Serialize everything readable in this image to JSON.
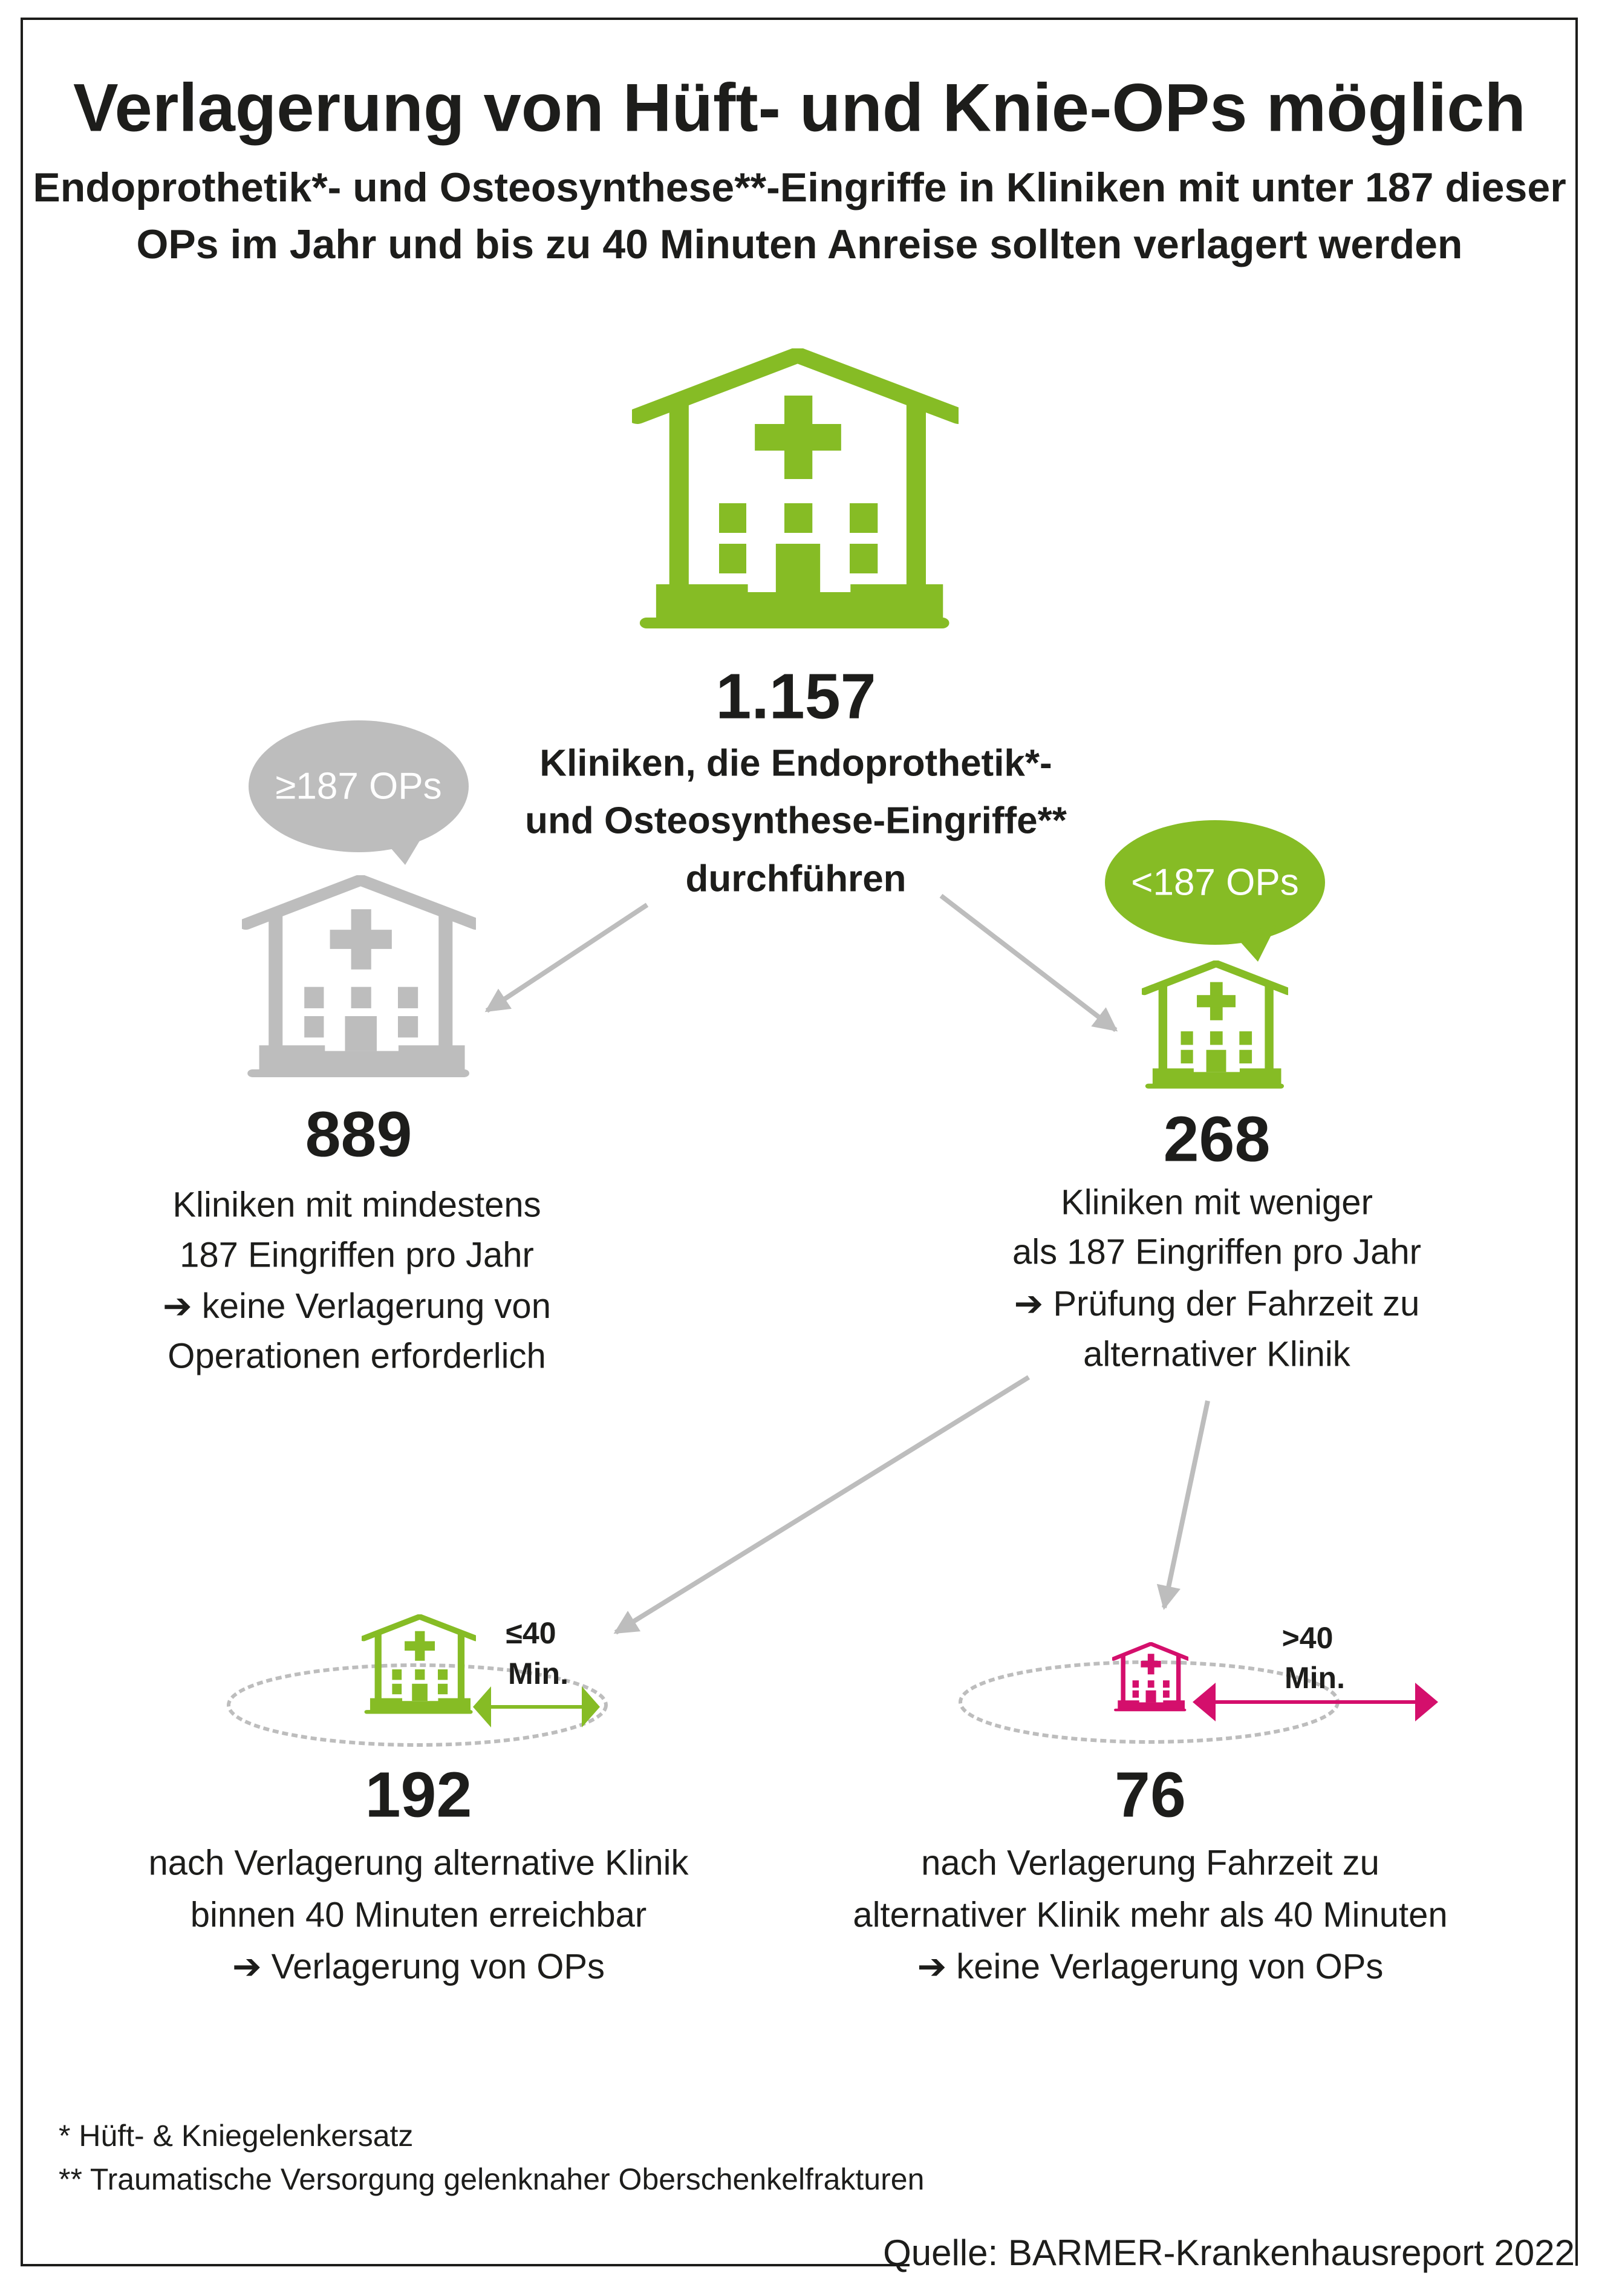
{
  "title": "Verlagerung von Hüft- und Knie-OPs möglich",
  "subtitle": [
    "Endoprothetik*- und Osteosynthese**-Eingriffe in Kliniken mit unter 187 dieser",
    "OPs im Jahr und bis zu 40 Minuten Anreise sollten verlagert werden"
  ],
  "colors": {
    "green": "#86bc25",
    "gray": "#bdbdbd",
    "magenta": "#d40f6c",
    "text": "#1d1d1b"
  },
  "top": {
    "value": "1.157",
    "lines": [
      "Kliniken, die Endoprothetik*-",
      "und Osteosynthese-Eingriffe**",
      "durchführen"
    ],
    "icon": "hospital-icon"
  },
  "left": {
    "bubble": "≥187 OPs",
    "value": "889",
    "lines": [
      "Kliniken mit mindestens",
      "187 Eingriffen pro Jahr",
      "➔ keine Verlagerung von",
      "Operationen erforderlich"
    ]
  },
  "right": {
    "bubble": "<187 OPs",
    "value": "268",
    "lines": [
      "Kliniken mit weniger",
      "als 187 Eingriffen pro Jahr",
      "➔ Prüfung der Fahrzeit zu",
      "alternativer Klinik"
    ]
  },
  "bottom_left": {
    "distance": "≤40",
    "unit": "Min.",
    "value": "192",
    "lines": [
      "nach Verlagerung alternative Klinik",
      "binnen 40 Minuten erreichbar",
      "➔ Verlagerung von OPs"
    ]
  },
  "bottom_right": {
    "distance": ">40",
    "unit": "Min.",
    "value": "76",
    "lines": [
      "nach Verlagerung Fahrzeit zu",
      "alternativer Klinik mehr als 40 Minuten",
      "➔ keine Verlagerung von OPs"
    ]
  },
  "footnotes": [
    "*   Hüft- & Kniegelenkersatz",
    "** Traumatische Versorgung gelenknaher Oberschenkelfrakturen"
  ],
  "source": "Quelle: BARMER-Krankenhausreport 2022"
}
